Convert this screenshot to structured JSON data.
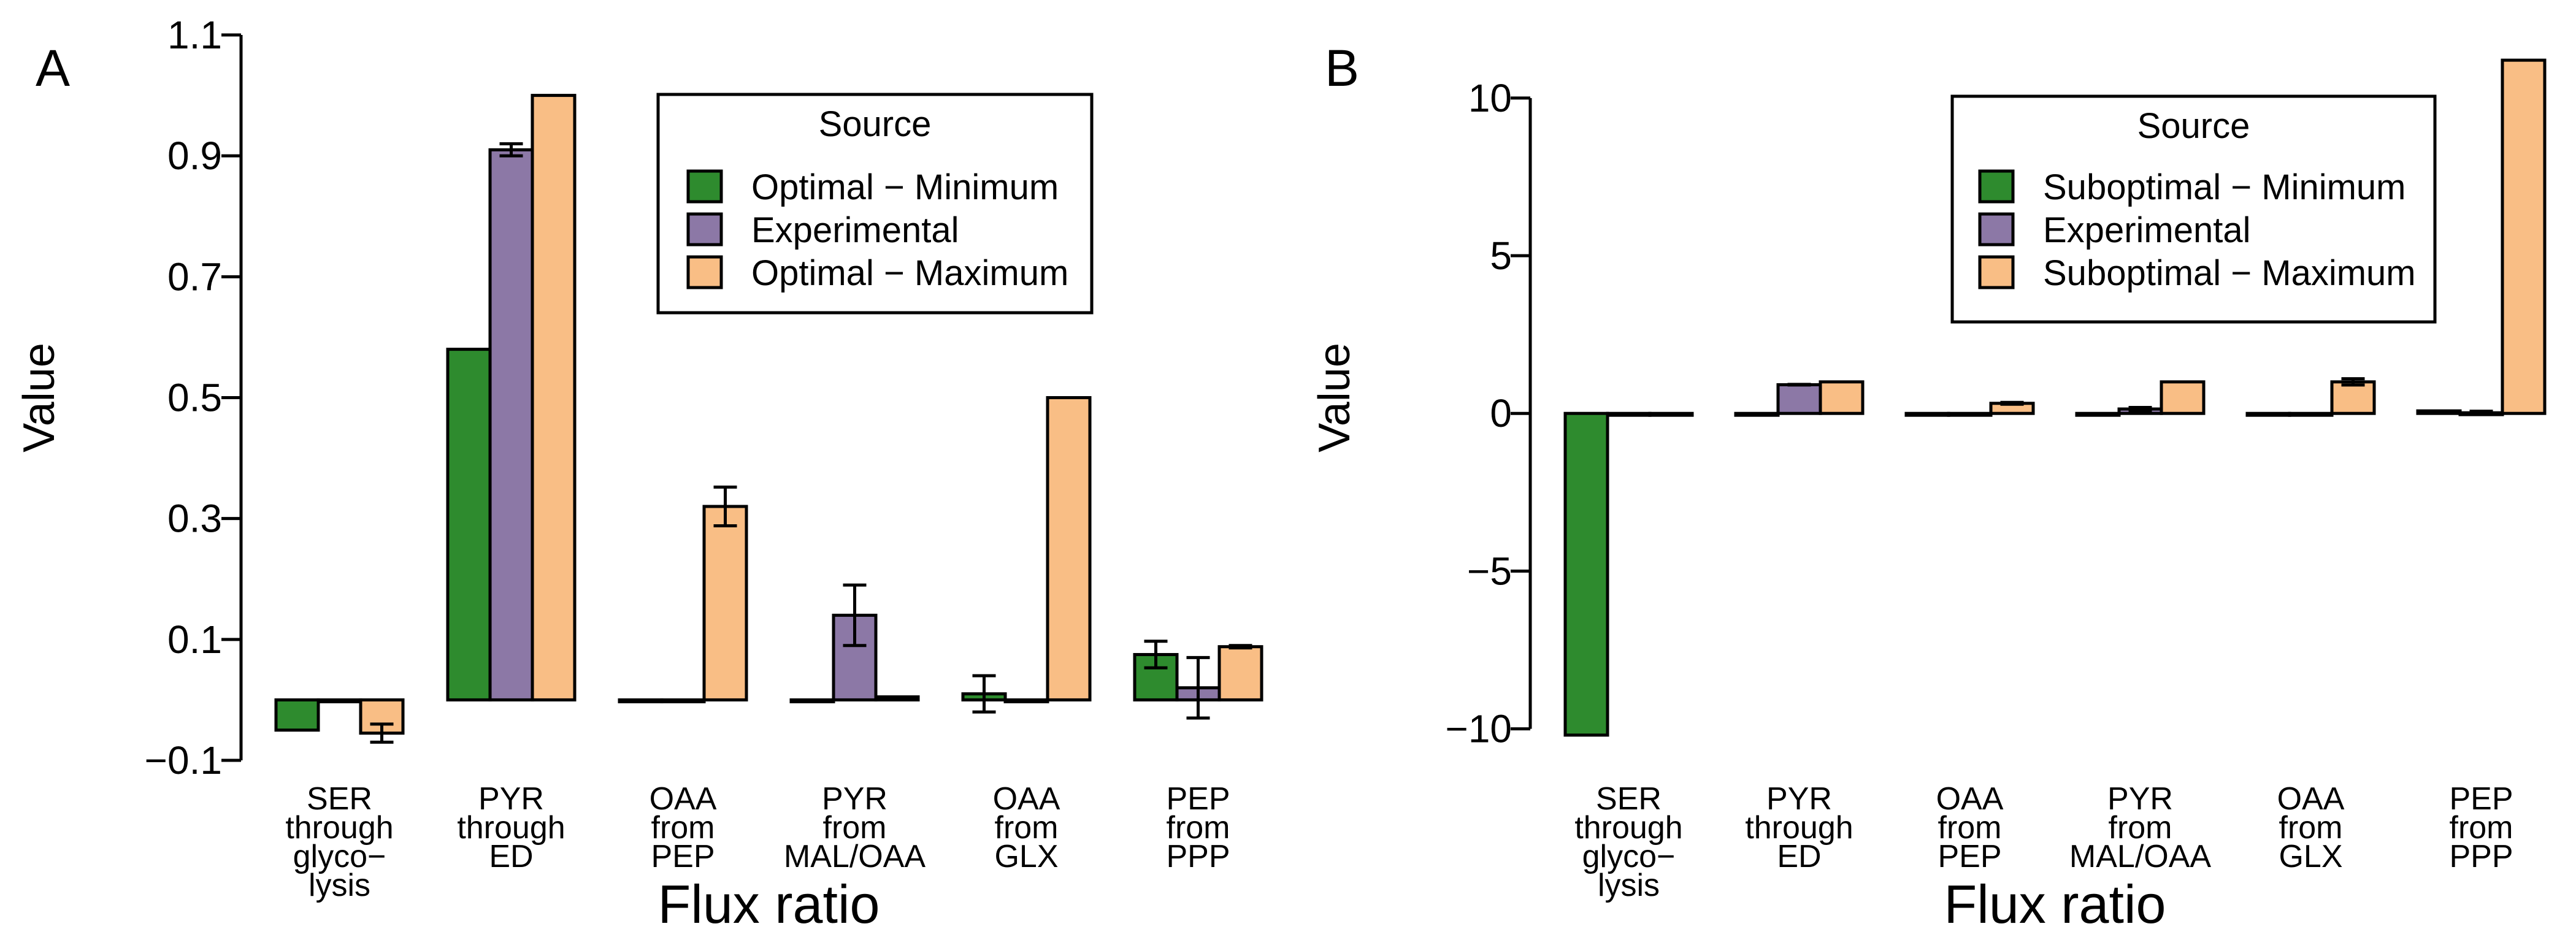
{
  "colors": {
    "series": [
      "#2e8b2e",
      "#8c78a6",
      "#f9be85"
    ],
    "stroke": "#000000"
  },
  "chart_data": [
    {
      "type": "bar",
      "panel_label": "A",
      "ylabel": "Value",
      "xlabel": "Flux ratio",
      "ylim": [
        -0.1,
        1.1
      ],
      "yticks": [
        -0.1,
        0.1,
        0.3,
        0.5,
        0.7,
        0.9,
        1.1
      ],
      "ytick_labels": [
        "−0.1",
        "0.1",
        "0.3",
        "0.5",
        "0.7",
        "0.9",
        "1.1"
      ],
      "grid": false,
      "legend": {
        "placement": "top-right",
        "title": "Source",
        "labels": [
          "Optimal − Minimum",
          "Experimental",
          "Optimal − Maximum"
        ]
      },
      "categories": [
        [
          "SER",
          "through",
          "glyco−",
          "lysis"
        ],
        [
          "PYR",
          "through",
          "ED"
        ],
        [
          "OAA",
          "from",
          "PEP"
        ],
        [
          "PYR",
          "from",
          "MAL/OAA"
        ],
        [
          "OAA",
          "from",
          "GLX"
        ],
        [
          "PEP",
          "from",
          "PPP"
        ]
      ],
      "series": [
        {
          "name": "Optimal − Minimum",
          "values": [
            -0.05,
            0.58,
            0.0,
            0.0,
            0.01,
            0.075
          ],
          "errors": [
            null,
            null,
            null,
            null,
            0.03,
            0.022
          ]
        },
        {
          "name": "Experimental",
          "values": [
            0.0,
            0.91,
            0.0,
            0.14,
            0.0,
            0.02
          ],
          "errors": [
            null,
            0.01,
            null,
            0.05,
            null,
            0.05
          ]
        },
        {
          "name": "Optimal − Maximum",
          "values": [
            -0.055,
            1.0,
            0.32,
            0.005,
            0.5,
            0.088
          ],
          "errors": [
            0.015,
            null,
            0.032,
            null,
            null,
            0.002
          ]
        }
      ]
    },
    {
      "type": "bar",
      "panel_label": "B",
      "ylabel": "Value",
      "xlabel": "Flux ratio",
      "ylim": [
        -11,
        12
      ],
      "yticks": [
        -10,
        -5,
        0,
        5,
        10
      ],
      "ytick_labels": [
        "−10",
        "−5",
        "0",
        "5",
        "10"
      ],
      "grid": false,
      "legend": {
        "placement": "top-right",
        "title": "Source",
        "labels": [
          "Suboptimal − Minimum",
          "Experimental",
          "Suboptimal − Maximum"
        ]
      },
      "categories": [
        [
          "SER",
          "through",
          "glyco−",
          "lysis"
        ],
        [
          "PYR",
          "through",
          "ED"
        ],
        [
          "OAA",
          "from",
          "PEP"
        ],
        [
          "PYR",
          "from",
          "MAL/OAA"
        ],
        [
          "OAA",
          "from",
          "GLX"
        ],
        [
          "PEP",
          "from",
          "PPP"
        ]
      ],
      "series": [
        {
          "name": "Suboptimal − Minimum",
          "values": [
            -10.2,
            0.0,
            0.0,
            0.0,
            0.0,
            0.08
          ],
          "errors": [
            null,
            null,
            null,
            null,
            null,
            null
          ]
        },
        {
          "name": "Experimental",
          "values": [
            0.0,
            0.91,
            0.0,
            0.14,
            0.0,
            0.02
          ],
          "errors": [
            null,
            0.01,
            null,
            0.05,
            null,
            0.05
          ]
        },
        {
          "name": "Suboptimal − Maximum",
          "values": [
            -0.05,
            1.0,
            0.32,
            1.0,
            1.0,
            11.2
          ],
          "errors": [
            null,
            null,
            0.03,
            null,
            0.1,
            null
          ]
        }
      ]
    }
  ]
}
